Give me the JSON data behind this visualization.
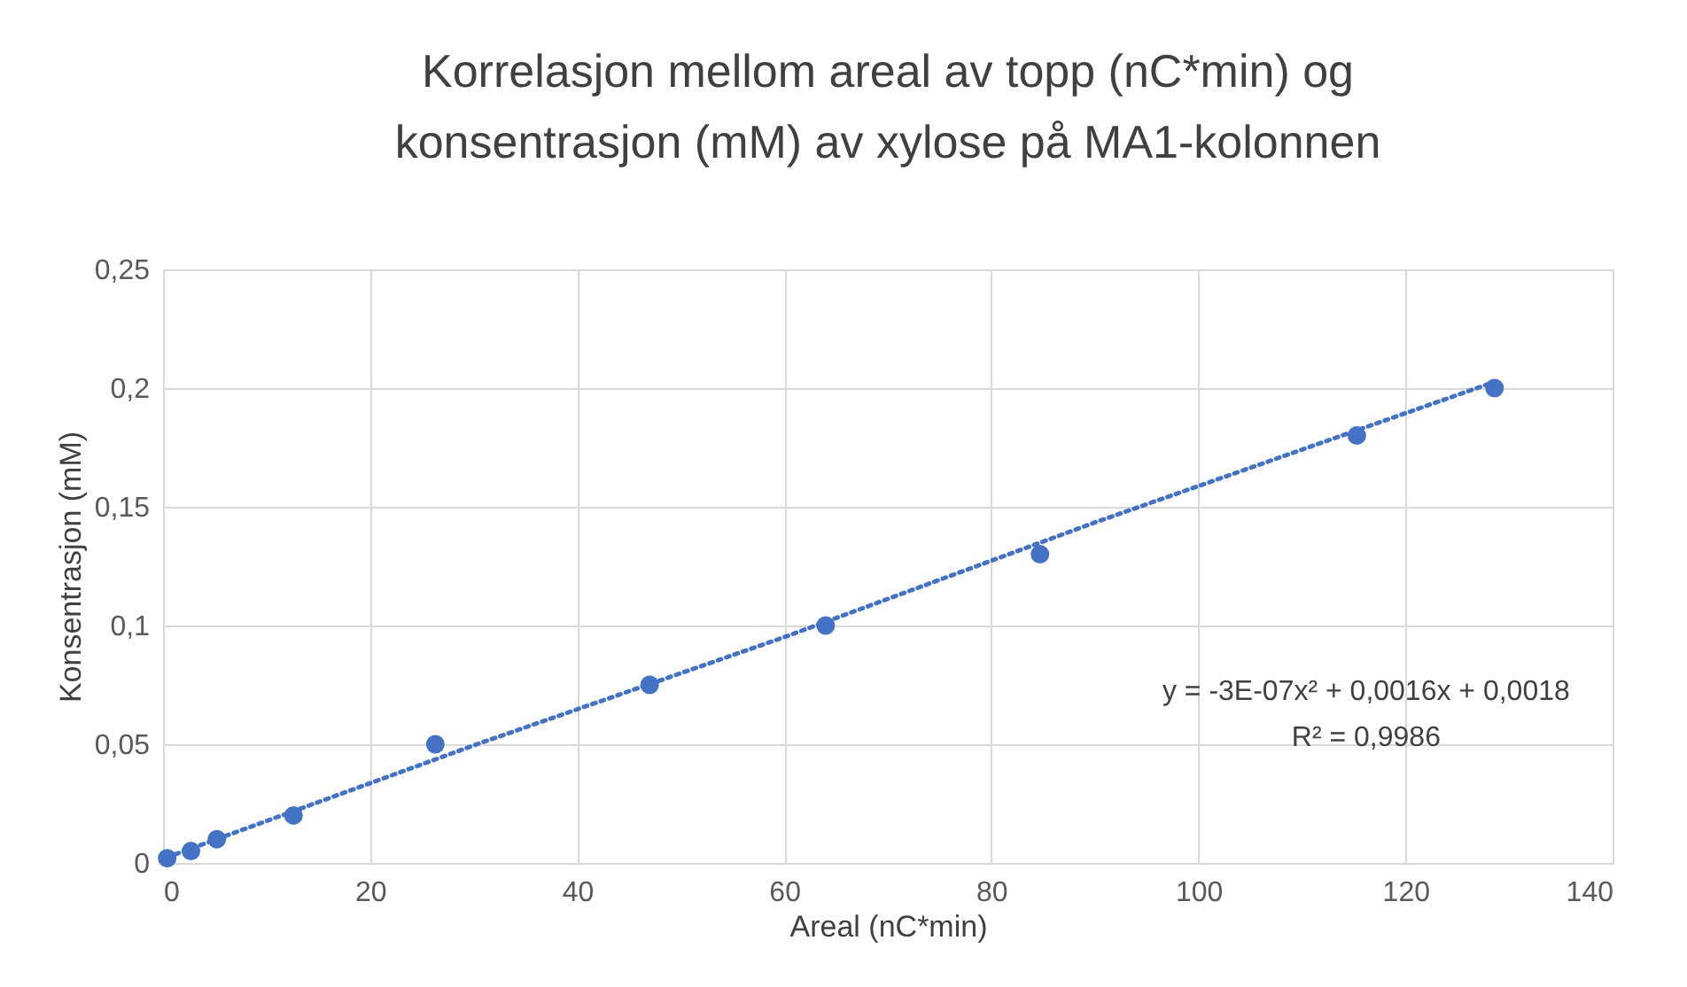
{
  "chart_data": {
    "type": "scatter",
    "title": [
      "Korrelasjon mellom areal av topp (nC*min) og",
      "konsentrasjon (mM) av xylose på MA1-kolonnen"
    ],
    "xlabel": "Areal (nC*min)",
    "ylabel": "Konsentrasjon (mM)",
    "series": [
      {
        "type": "scatter",
        "color": "#4472c4",
        "marker": "circle",
        "x": [
          0.4,
          2.7,
          5.2,
          12.6,
          26.3,
          47,
          64,
          84.7,
          115.3,
          128.6
        ],
        "values": [
          0.002,
          0.005,
          0.01,
          0.02,
          0.05,
          0.075,
          0.1,
          0.13,
          0.18,
          0.2
        ]
      },
      {
        "type": "line",
        "color": "#4472c4",
        "line_style": "dotted",
        "marker": "none",
        "x": [
          0.4,
          30,
          60,
          90,
          128.6
        ],
        "values": [
          0.0024,
          0.0495,
          0.0951,
          0.1434,
          0.2026
        ]
      }
    ],
    "xlim": [
      0,
      140
    ],
    "xticks": [
      0,
      20,
      40,
      60,
      80,
      100,
      120,
      140
    ],
    "ylim": [
      0,
      0.25
    ],
    "yticks": [
      0,
      {
        "value": 0.05,
        "label": "0,05"
      },
      {
        "value": 0.1,
        "label": "0,1"
      },
      {
        "value": 0.15,
        "label": "0,15"
      },
      {
        "value": 0.2,
        "label": "0,2"
      },
      {
        "value": 0.25,
        "label": "0,25"
      }
    ],
    "grid": true,
    "annotations": [
      "y = -3E-07x² + 0,0016x + 0,0018",
      "R² = 0,9986"
    ]
  }
}
